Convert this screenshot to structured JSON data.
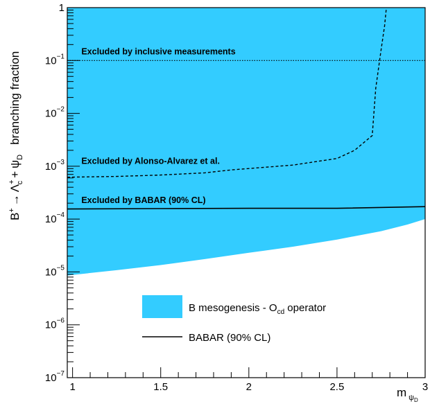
{
  "chart_data": {
    "type": "area",
    "x_axis": {
      "title": "m",
      "title_subscript": "ψ",
      "title_subscript2": "D",
      "lim": [
        0.97,
        3.0
      ],
      "ticks": [
        1,
        1.5,
        2,
        2.5,
        3
      ],
      "tick_labels": [
        "1",
        "1.5",
        "2",
        "2.5",
        "3"
      ]
    },
    "y_axis": {
      "scale": "log",
      "lim": [
        1e-07,
        1
      ],
      "title_prefix": "B",
      "title_prefix_sup": "+",
      "title_arrow": "→",
      "title_lambda": "Λ",
      "title_lambda_sup": "+",
      "title_lambda_sub": "c",
      "title_plus": "+",
      "title_psi": "ψ",
      "title_psi_sub": "D",
      "title_suffix": "branching fraction",
      "ticks": [
        {
          "value": 1e-07,
          "base": "10",
          "exp": "−7"
        },
        {
          "value": 1e-06,
          "base": "10",
          "exp": "−6"
        },
        {
          "value": 1e-05,
          "base": "10",
          "exp": "−5"
        },
        {
          "value": 0.0001,
          "base": "10",
          "exp": "−4"
        },
        {
          "value": 0.001,
          "base": "10",
          "exp": "−3"
        },
        {
          "value": 0.01,
          "base": "10",
          "exp": "−2"
        },
        {
          "value": 0.1,
          "base": "10",
          "exp": "−1"
        },
        {
          "value": 1,
          "base": "1",
          "exp": ""
        }
      ]
    },
    "series": [
      {
        "name": "B mesogenesis - O operator",
        "name_main": "B mesogenesis - O",
        "name_sub": "cd",
        "name_tail": " operator",
        "kind": "filled_band",
        "color": "#33CCFF",
        "upper": 1,
        "lower": [
          [
            0.97,
            8.5e-06
          ],
          [
            1.0,
            8.8e-06
          ],
          [
            1.25,
            1.08e-05
          ],
          [
            1.5,
            1.35e-05
          ],
          [
            1.75,
            1.75e-05
          ],
          [
            2.0,
            2.3e-05
          ],
          [
            2.25,
            3e-05
          ],
          [
            2.5,
            4.1e-05
          ],
          [
            2.75,
            5.9e-05
          ],
          [
            2.9,
            7.9e-05
          ],
          [
            3.0,
            0.0001
          ]
        ]
      },
      {
        "name": "BABAR (90% CL)",
        "kind": "solid_line",
        "color": "#000000",
        "points": [
          [
            0.97,
            0.000155
          ],
          [
            1.5,
            0.000158
          ],
          [
            2.0,
            0.00016
          ],
          [
            2.5,
            0.00016
          ],
          [
            3.0,
            0.000172
          ]
        ]
      },
      {
        "kind": "dashed_line",
        "color": "#000000",
        "points": [
          [
            0.97,
            0.00062
          ],
          [
            1.25,
            0.00064
          ],
          [
            1.5,
            0.00068
          ],
          [
            1.75,
            0.00075
          ],
          [
            1.9,
            0.00085
          ],
          [
            2.25,
            0.00105
          ],
          [
            2.5,
            0.0014
          ],
          [
            2.6,
            0.002
          ],
          [
            2.7,
            0.0038
          ],
          [
            2.72,
            0.03
          ],
          [
            2.75,
            0.16
          ],
          [
            2.77,
            0.45
          ],
          [
            2.78,
            1.0
          ]
        ]
      },
      {
        "kind": "dotted_line",
        "color": "#000000",
        "points": [
          [
            0.97,
            0.1
          ],
          [
            3.0,
            0.1
          ]
        ]
      }
    ],
    "annotations": [
      {
        "text": "Excluded by inclusive measurements",
        "x": 1.05,
        "y": 0.13
      },
      {
        "text": "Excluded by Alonso-Alvarez et al.",
        "x": 1.05,
        "y": 0.0011
      },
      {
        "text": "Excluded by BABAR (90% CL)",
        "x": 1.05,
        "y": 0.0002
      }
    ],
    "legend_position": "bottom-center"
  }
}
